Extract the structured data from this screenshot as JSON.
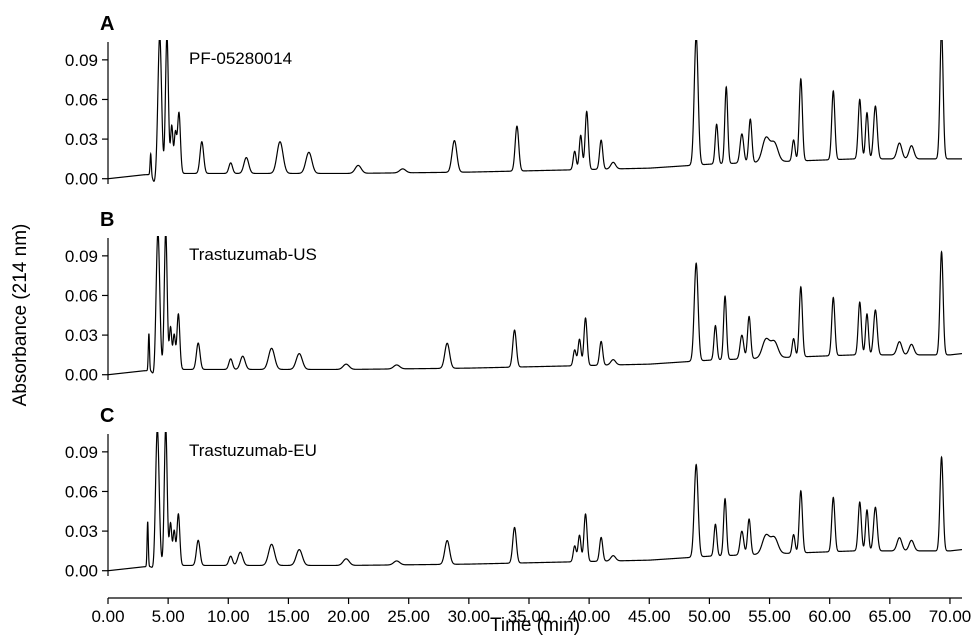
{
  "chart_data": {
    "type": "line",
    "xlabel": "Time (min)",
    "ylabel": "Absorbance (214 nm)",
    "xlim": [
      0,
      71
    ],
    "ylim": [
      -0.004,
      0.102
    ],
    "x_ticks": [
      "0.00",
      "5.00",
      "10.00",
      "15.00",
      "20.00",
      "25.00",
      "30.00",
      "35.00",
      "40.00",
      "45.00",
      "50.00",
      "55.00",
      "60.00",
      "65.00",
      "70.00"
    ],
    "y_ticks": [
      "0.00",
      "0.03",
      "0.06",
      "0.09"
    ],
    "grid": false,
    "panels": [
      {
        "letter": "A",
        "name": "PF-05280014",
        "baseline": [
          [
            0,
            0.0
          ],
          [
            3.0,
            0.003
          ],
          [
            6.0,
            0.004
          ],
          [
            20.0,
            0.004
          ],
          [
            30.0,
            0.005
          ],
          [
            40.0,
            0.007
          ],
          [
            45.0,
            0.008
          ],
          [
            50.0,
            0.011
          ],
          [
            56.0,
            0.013
          ],
          [
            62.0,
            0.015
          ],
          [
            66.0,
            0.015
          ],
          [
            70.0,
            0.015
          ],
          [
            71.0,
            0.015
          ]
        ],
        "peaks": [
          [
            3.55,
            0.016,
            0.05
          ],
          [
            4.3,
            0.105,
            0.15
          ],
          [
            4.9,
            0.105,
            0.12
          ],
          [
            5.3,
            0.036,
            0.1
          ],
          [
            5.6,
            0.03,
            0.1
          ],
          [
            5.9,
            0.046,
            0.12
          ],
          [
            7.8,
            0.024,
            0.15
          ],
          [
            10.2,
            0.008,
            0.15
          ],
          [
            11.5,
            0.012,
            0.2
          ],
          [
            14.3,
            0.024,
            0.25
          ],
          [
            16.7,
            0.016,
            0.25
          ],
          [
            20.8,
            0.006,
            0.25
          ],
          [
            24.5,
            0.003,
            0.25
          ],
          [
            28.8,
            0.024,
            0.2
          ],
          [
            34.0,
            0.034,
            0.15
          ],
          [
            38.8,
            0.014,
            0.12
          ],
          [
            39.3,
            0.026,
            0.12
          ],
          [
            39.8,
            0.044,
            0.13
          ],
          [
            41.0,
            0.022,
            0.13
          ],
          [
            42.0,
            0.005,
            0.2
          ],
          [
            48.9,
            0.098,
            0.16
          ],
          [
            50.6,
            0.03,
            0.12
          ],
          [
            51.4,
            0.058,
            0.12
          ],
          [
            52.7,
            0.022,
            0.15
          ],
          [
            53.4,
            0.033,
            0.13
          ],
          [
            54.7,
            0.018,
            0.3
          ],
          [
            55.4,
            0.014,
            0.3
          ],
          [
            57.0,
            0.016,
            0.12
          ],
          [
            57.6,
            0.062,
            0.13
          ],
          [
            60.3,
            0.052,
            0.13
          ],
          [
            62.5,
            0.045,
            0.13
          ],
          [
            63.1,
            0.035,
            0.12
          ],
          [
            63.8,
            0.04,
            0.15
          ],
          [
            65.8,
            0.012,
            0.2
          ],
          [
            66.8,
            0.01,
            0.2
          ],
          [
            69.3,
            0.098,
            0.13
          ]
        ]
      },
      {
        "letter": "B",
        "name": "Trastuzumab-US",
        "baseline": [
          [
            0,
            0.0
          ],
          [
            3.0,
            0.003
          ],
          [
            6.0,
            0.004
          ],
          [
            20.0,
            0.004
          ],
          [
            30.0,
            0.005
          ],
          [
            40.0,
            0.007
          ],
          [
            45.0,
            0.008
          ],
          [
            50.0,
            0.011
          ],
          [
            56.0,
            0.013
          ],
          [
            62.0,
            0.015
          ],
          [
            66.0,
            0.015
          ],
          [
            70.0,
            0.015
          ],
          [
            71.0,
            0.016
          ]
        ],
        "peaks": [
          [
            3.4,
            0.028,
            0.05
          ],
          [
            4.15,
            0.105,
            0.15
          ],
          [
            4.8,
            0.105,
            0.12
          ],
          [
            5.2,
            0.032,
            0.1
          ],
          [
            5.5,
            0.026,
            0.1
          ],
          [
            5.85,
            0.042,
            0.12
          ],
          [
            7.5,
            0.02,
            0.15
          ],
          [
            10.2,
            0.008,
            0.15
          ],
          [
            11.2,
            0.01,
            0.2
          ],
          [
            13.6,
            0.016,
            0.25
          ],
          [
            15.9,
            0.012,
            0.25
          ],
          [
            19.8,
            0.004,
            0.25
          ],
          [
            24.0,
            0.003,
            0.25
          ],
          [
            28.2,
            0.019,
            0.2
          ],
          [
            33.8,
            0.028,
            0.15
          ],
          [
            38.8,
            0.012,
            0.12
          ],
          [
            39.2,
            0.02,
            0.12
          ],
          [
            39.7,
            0.036,
            0.13
          ],
          [
            41.0,
            0.018,
            0.13
          ],
          [
            42.0,
            0.004,
            0.2
          ],
          [
            48.9,
            0.074,
            0.16
          ],
          [
            50.5,
            0.026,
            0.12
          ],
          [
            51.3,
            0.048,
            0.12
          ],
          [
            52.7,
            0.018,
            0.15
          ],
          [
            53.3,
            0.032,
            0.13
          ],
          [
            54.7,
            0.014,
            0.3
          ],
          [
            55.4,
            0.012,
            0.3
          ],
          [
            57.0,
            0.014,
            0.12
          ],
          [
            57.6,
            0.053,
            0.13
          ],
          [
            60.3,
            0.044,
            0.13
          ],
          [
            62.5,
            0.04,
            0.13
          ],
          [
            63.1,
            0.031,
            0.12
          ],
          [
            63.8,
            0.034,
            0.15
          ],
          [
            65.8,
            0.01,
            0.2
          ],
          [
            66.8,
            0.008,
            0.2
          ],
          [
            69.3,
            0.078,
            0.13
          ]
        ]
      },
      {
        "letter": "C",
        "name": "Trastuzumab-EU",
        "baseline": [
          [
            0,
            0.0
          ],
          [
            3.0,
            0.003
          ],
          [
            6.0,
            0.004
          ],
          [
            20.0,
            0.004
          ],
          [
            30.0,
            0.005
          ],
          [
            40.0,
            0.007
          ],
          [
            45.0,
            0.008
          ],
          [
            50.0,
            0.011
          ],
          [
            56.0,
            0.013
          ],
          [
            62.0,
            0.015
          ],
          [
            66.0,
            0.015
          ],
          [
            70.0,
            0.015
          ],
          [
            71.0,
            0.016
          ]
        ],
        "peaks": [
          [
            3.3,
            0.034,
            0.05
          ],
          [
            4.1,
            0.105,
            0.15
          ],
          [
            4.8,
            0.105,
            0.12
          ],
          [
            5.2,
            0.032,
            0.1
          ],
          [
            5.5,
            0.026,
            0.1
          ],
          [
            5.85,
            0.039,
            0.12
          ],
          [
            7.5,
            0.019,
            0.15
          ],
          [
            10.2,
            0.007,
            0.15
          ],
          [
            11.0,
            0.01,
            0.2
          ],
          [
            13.6,
            0.016,
            0.25
          ],
          [
            15.9,
            0.012,
            0.25
          ],
          [
            19.8,
            0.005,
            0.25
          ],
          [
            24.0,
            0.003,
            0.25
          ],
          [
            28.2,
            0.018,
            0.2
          ],
          [
            33.8,
            0.027,
            0.15
          ],
          [
            38.8,
            0.012,
            0.12
          ],
          [
            39.2,
            0.02,
            0.12
          ],
          [
            39.7,
            0.036,
            0.13
          ],
          [
            41.0,
            0.018,
            0.13
          ],
          [
            42.0,
            0.004,
            0.2
          ],
          [
            48.9,
            0.07,
            0.16
          ],
          [
            50.5,
            0.024,
            0.12
          ],
          [
            51.3,
            0.043,
            0.12
          ],
          [
            52.7,
            0.018,
            0.15
          ],
          [
            53.3,
            0.027,
            0.13
          ],
          [
            54.7,
            0.014,
            0.3
          ],
          [
            55.4,
            0.012,
            0.3
          ],
          [
            57.0,
            0.014,
            0.12
          ],
          [
            57.6,
            0.047,
            0.13
          ],
          [
            60.3,
            0.041,
            0.13
          ],
          [
            62.5,
            0.037,
            0.13
          ],
          [
            63.1,
            0.031,
            0.12
          ],
          [
            63.8,
            0.033,
            0.15
          ],
          [
            65.8,
            0.01,
            0.2
          ],
          [
            66.8,
            0.008,
            0.2
          ],
          [
            69.3,
            0.071,
            0.13
          ]
        ]
      }
    ]
  }
}
